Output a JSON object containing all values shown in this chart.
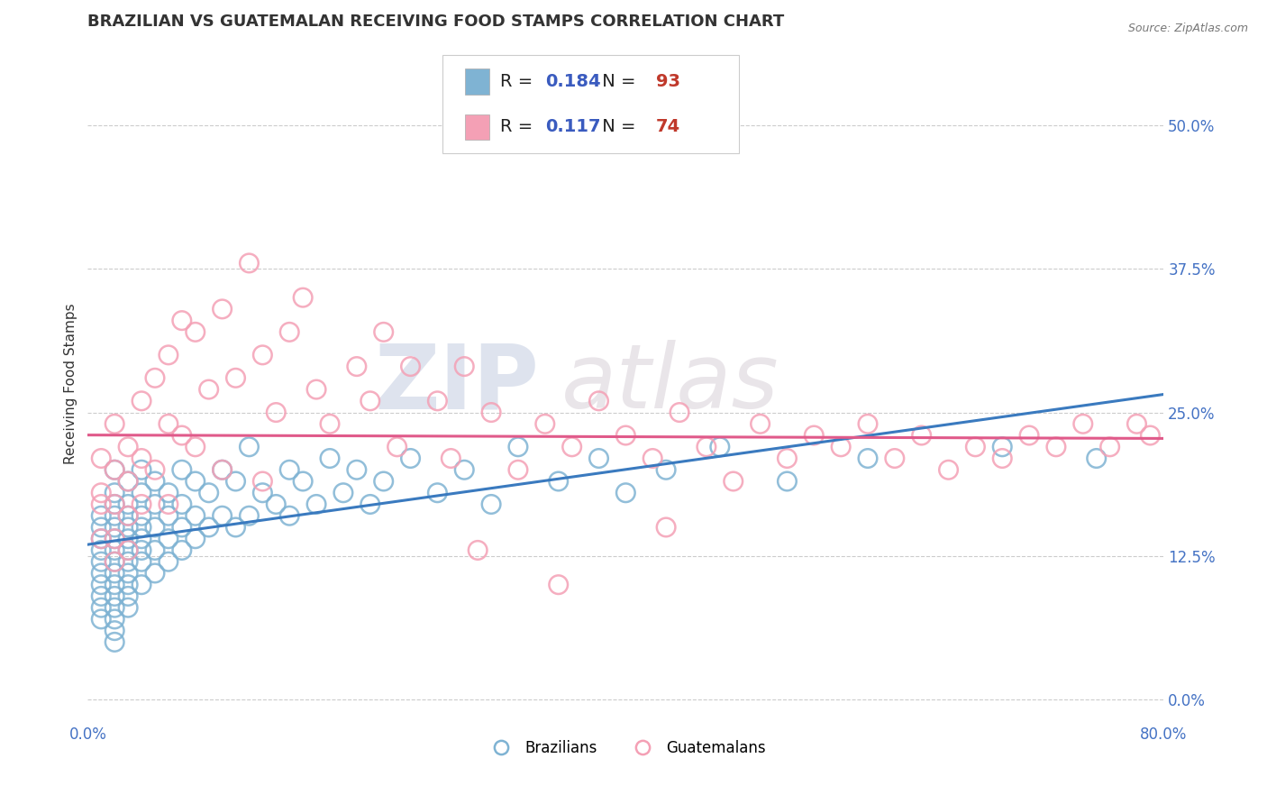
{
  "title": "BRAZILIAN VS GUATEMALAN RECEIVING FOOD STAMPS CORRELATION CHART",
  "source": "Source: ZipAtlas.com",
  "ylabel": "Receiving Food Stamps",
  "xlim": [
    0.0,
    0.8
  ],
  "ylim": [
    -0.02,
    0.57
  ],
  "yticks": [
    0.0,
    0.125,
    0.25,
    0.375,
    0.5
  ],
  "ytick_labels": [
    "0.0%",
    "12.5%",
    "25.0%",
    "37.5%",
    "50.0%"
  ],
  "xticks": [
    0.0,
    0.8
  ],
  "xtick_labels": [
    "0.0%",
    "80.0%"
  ],
  "brazil_R": 0.184,
  "brazil_N": 93,
  "guate_R": 0.117,
  "guate_N": 74,
  "brazil_color": "#7fb3d3",
  "guate_color": "#f4a0b5",
  "brazil_line_color": "#3a7abf",
  "guate_line_color": "#e05a8a",
  "background_color": "#ffffff",
  "grid_color": "#cccccc",
  "watermark_zip": "ZIP",
  "watermark_atlas": "atlas",
  "title_fontsize": 13,
  "label_fontsize": 11,
  "tick_fontsize": 12,
  "legend_fontsize": 14,
  "brazil_x": [
    0.01,
    0.01,
    0.01,
    0.01,
    0.01,
    0.01,
    0.01,
    0.01,
    0.01,
    0.01,
    0.02,
    0.02,
    0.02,
    0.02,
    0.02,
    0.02,
    0.02,
    0.02,
    0.02,
    0.02,
    0.02,
    0.02,
    0.02,
    0.02,
    0.02,
    0.03,
    0.03,
    0.03,
    0.03,
    0.03,
    0.03,
    0.03,
    0.03,
    0.03,
    0.03,
    0.03,
    0.04,
    0.04,
    0.04,
    0.04,
    0.04,
    0.04,
    0.04,
    0.04,
    0.05,
    0.05,
    0.05,
    0.05,
    0.05,
    0.06,
    0.06,
    0.06,
    0.06,
    0.07,
    0.07,
    0.07,
    0.07,
    0.08,
    0.08,
    0.08,
    0.09,
    0.09,
    0.1,
    0.1,
    0.11,
    0.11,
    0.12,
    0.12,
    0.13,
    0.14,
    0.15,
    0.15,
    0.16,
    0.17,
    0.18,
    0.19,
    0.2,
    0.21,
    0.22,
    0.24,
    0.26,
    0.28,
    0.3,
    0.32,
    0.35,
    0.38,
    0.4,
    0.43,
    0.47,
    0.52,
    0.58,
    0.68,
    0.75
  ],
  "brazil_y": [
    0.16,
    0.15,
    0.14,
    0.13,
    0.12,
    0.11,
    0.1,
    0.09,
    0.08,
    0.07,
    0.2,
    0.18,
    0.17,
    0.16,
    0.15,
    0.14,
    0.13,
    0.12,
    0.11,
    0.1,
    0.09,
    0.08,
    0.07,
    0.06,
    0.05,
    0.19,
    0.17,
    0.16,
    0.15,
    0.14,
    0.13,
    0.12,
    0.11,
    0.1,
    0.09,
    0.08,
    0.2,
    0.18,
    0.16,
    0.15,
    0.14,
    0.13,
    0.12,
    0.1,
    0.19,
    0.17,
    0.15,
    0.13,
    0.11,
    0.18,
    0.16,
    0.14,
    0.12,
    0.2,
    0.17,
    0.15,
    0.13,
    0.19,
    0.16,
    0.14,
    0.18,
    0.15,
    0.2,
    0.16,
    0.19,
    0.15,
    0.22,
    0.16,
    0.18,
    0.17,
    0.2,
    0.16,
    0.19,
    0.17,
    0.21,
    0.18,
    0.2,
    0.17,
    0.19,
    0.21,
    0.18,
    0.2,
    0.17,
    0.22,
    0.19,
    0.21,
    0.18,
    0.2,
    0.22,
    0.19,
    0.21,
    0.22,
    0.21
  ],
  "guate_x": [
    0.01,
    0.01,
    0.01,
    0.01,
    0.02,
    0.02,
    0.02,
    0.02,
    0.02,
    0.03,
    0.03,
    0.03,
    0.03,
    0.04,
    0.04,
    0.04,
    0.05,
    0.05,
    0.06,
    0.06,
    0.06,
    0.07,
    0.07,
    0.08,
    0.08,
    0.09,
    0.1,
    0.1,
    0.11,
    0.12,
    0.13,
    0.13,
    0.14,
    0.15,
    0.16,
    0.17,
    0.18,
    0.2,
    0.21,
    0.22,
    0.23,
    0.24,
    0.26,
    0.27,
    0.28,
    0.3,
    0.32,
    0.34,
    0.36,
    0.38,
    0.4,
    0.42,
    0.44,
    0.46,
    0.5,
    0.52,
    0.54,
    0.56,
    0.58,
    0.6,
    0.62,
    0.64,
    0.66,
    0.68,
    0.7,
    0.72,
    0.74,
    0.76,
    0.78,
    0.79,
    0.48,
    0.43,
    0.35,
    0.29
  ],
  "guate_y": [
    0.21,
    0.18,
    0.17,
    0.14,
    0.24,
    0.2,
    0.17,
    0.14,
    0.12,
    0.22,
    0.19,
    0.16,
    0.13,
    0.26,
    0.21,
    0.17,
    0.28,
    0.2,
    0.3,
    0.24,
    0.17,
    0.33,
    0.23,
    0.32,
    0.22,
    0.27,
    0.34,
    0.2,
    0.28,
    0.38,
    0.3,
    0.19,
    0.25,
    0.32,
    0.35,
    0.27,
    0.24,
    0.29,
    0.26,
    0.32,
    0.22,
    0.29,
    0.26,
    0.21,
    0.29,
    0.25,
    0.2,
    0.24,
    0.22,
    0.26,
    0.23,
    0.21,
    0.25,
    0.22,
    0.24,
    0.21,
    0.23,
    0.22,
    0.24,
    0.21,
    0.23,
    0.2,
    0.22,
    0.21,
    0.23,
    0.22,
    0.24,
    0.22,
    0.24,
    0.23,
    0.19,
    0.15,
    0.1,
    0.13
  ]
}
